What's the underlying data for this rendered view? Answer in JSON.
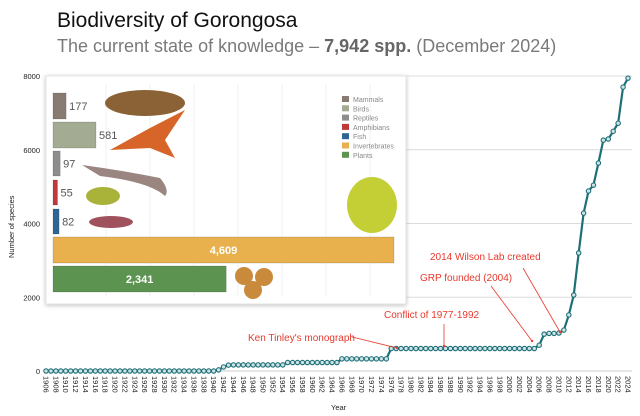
{
  "title": "Biodiversity of Gorongosa",
  "subtitle": {
    "prefix": "The current state of knowledge – ",
    "bold": "7,942 spp.",
    "suffix": " (December 2024)"
  },
  "chart_data": [
    {
      "type": "line",
      "xlabel": "Year",
      "ylabel": "Number of species",
      "ylim": [
        0,
        8000
      ],
      "yticks": [
        "0",
        "2000",
        "4000",
        "6000",
        "8000"
      ],
      "xlim": [
        1906,
        2024
      ],
      "grid": "horizontal",
      "line_color": "#1d6f78",
      "x": [
        1906,
        1907,
        1908,
        1909,
        1910,
        1911,
        1912,
        1913,
        1914,
        1915,
        1916,
        1917,
        1918,
        1919,
        1920,
        1921,
        1922,
        1923,
        1924,
        1925,
        1926,
        1927,
        1928,
        1929,
        1930,
        1931,
        1932,
        1933,
        1934,
        1935,
        1936,
        1937,
        1938,
        1939,
        1940,
        1941,
        1942,
        1943,
        1944,
        1945,
        1946,
        1947,
        1948,
        1949,
        1950,
        1951,
        1952,
        1953,
        1954,
        1955,
        1956,
        1957,
        1958,
        1959,
        1960,
        1961,
        1962,
        1963,
        1964,
        1965,
        1966,
        1967,
        1968,
        1969,
        1970,
        1971,
        1972,
        1973,
        1974,
        1975,
        1976,
        1977,
        1978,
        1979,
        1980,
        1981,
        1982,
        1983,
        1984,
        1985,
        1986,
        1987,
        1988,
        1989,
        1990,
        1991,
        1992,
        1993,
        1994,
        1995,
        1996,
        1997,
        1998,
        1999,
        2000,
        2001,
        2002,
        2003,
        2004,
        2005,
        2006,
        2007,
        2008,
        2009,
        2010,
        2011,
        2012,
        2013,
        2014,
        2015,
        2016,
        2017,
        2018,
        2019,
        2020,
        2021,
        2022,
        2023,
        2024
      ],
      "y": [
        0,
        0,
        0,
        0,
        0,
        0,
        0,
        0,
        0,
        0,
        0,
        0,
        0,
        0,
        0,
        0,
        0,
        0,
        0,
        0,
        0,
        0,
        0,
        0,
        0,
        0,
        0,
        0,
        0,
        0,
        0,
        0,
        0,
        0,
        0,
        30,
        110,
        160,
        165,
        165,
        165,
        165,
        165,
        165,
        165,
        165,
        165,
        165,
        165,
        230,
        230,
        230,
        230,
        230,
        230,
        230,
        230,
        230,
        230,
        230,
        330,
        330,
        330,
        330,
        330,
        330,
        330,
        330,
        330,
        330,
        610,
        610,
        610,
        610,
        610,
        610,
        610,
        610,
        610,
        610,
        610,
        610,
        610,
        610,
        610,
        610,
        610,
        610,
        610,
        610,
        610,
        610,
        610,
        610,
        610,
        610,
        610,
        610,
        610,
        610,
        700,
        1000,
        1020,
        1020,
        1030,
        1110,
        1520,
        2060,
        3200,
        4280,
        4880,
        5040,
        5640,
        6260,
        6290,
        6500,
        6720,
        7700,
        7942
      ],
      "xticks": [
        "1906",
        "1908",
        "1910",
        "1912",
        "1914",
        "1916",
        "1918",
        "1920",
        "1922",
        "1924",
        "1926",
        "1928",
        "1930",
        "1932",
        "1934",
        "1936",
        "1938",
        "1940",
        "1942",
        "1944",
        "1946",
        "1948",
        "1950",
        "1952",
        "1954",
        "1956",
        "1958",
        "1960",
        "1962",
        "1964",
        "1966",
        "1968",
        "1970",
        "1972",
        "1974",
        "1976",
        "1978",
        "1980",
        "1982",
        "1984",
        "1986",
        "1988",
        "1990",
        "1992",
        "1994",
        "1996",
        "1998",
        "2000",
        "2002",
        "2004",
        "2006",
        "2008",
        "2010",
        "2012",
        "2014",
        "2016",
        "2018",
        "2020",
        "2022",
        "2024"
      ],
      "annotations": [
        {
          "text": "Ken Tinley's monograph",
          "year": 1976
        },
        {
          "text": "Conflict of 1977-1992",
          "year": 1986
        },
        {
          "text": "GRP founded (2004)",
          "year": 2004
        },
        {
          "text": "2014 Wilson Lab created",
          "year": 2011
        }
      ]
    },
    {
      "type": "bar",
      "orientation": "horizontal",
      "categories": [
        "Mammals",
        "Birds",
        "Reptiles",
        "Amphibians",
        "Fish",
        "Invertebrates",
        "Plants"
      ],
      "values": [
        177,
        581,
        97,
        55,
        82,
        4609,
        2341
      ],
      "value_labels": [
        "177",
        "581",
        "97",
        "55",
        "82",
        "4,609",
        "2,341"
      ],
      "colors": [
        "#8a7b72",
        "#a3ab92",
        "#8d8d8d",
        "#c0393b",
        "#2f6595",
        "#e9b04e",
        "#5d9350"
      ],
      "legend": "top-right",
      "icons": [
        "pangolin-image",
        "bird-image",
        "lizard-image",
        "frog-image",
        "fish-image",
        "grasshopper-image",
        "fruit-image"
      ]
    }
  ]
}
